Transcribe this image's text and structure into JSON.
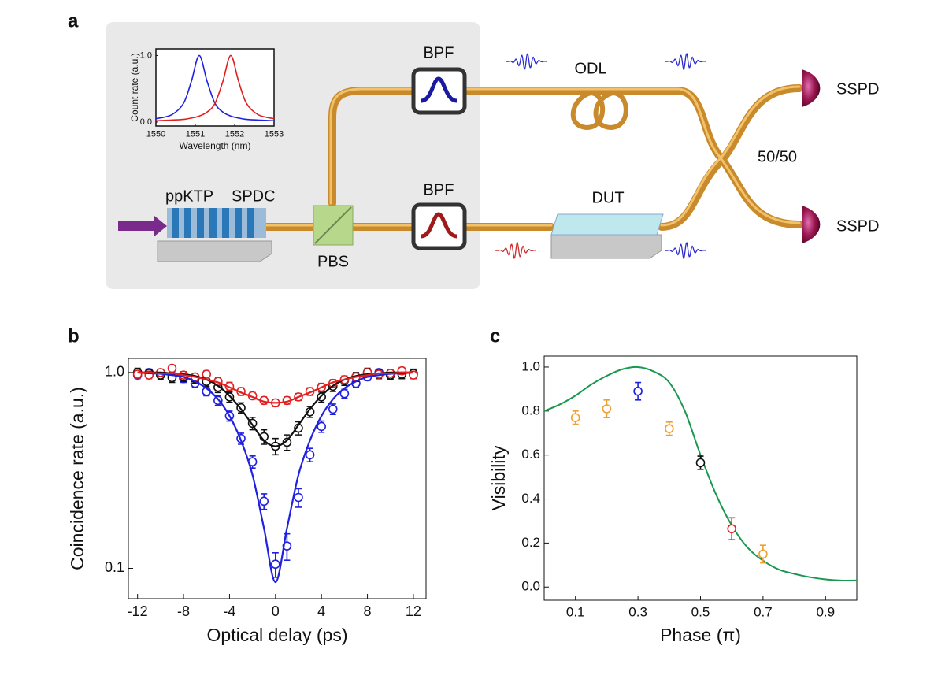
{
  "panel_labels": [
    "a",
    "b",
    "c"
  ],
  "diagram": {
    "ppktp": "ppKTP",
    "spdc": "SPDC",
    "pbs": "PBS",
    "bpf_top": "BPF",
    "bpf_bottom": "BPF",
    "odl": "ODL",
    "dut": "DUT",
    "sspd_top": "SSPD",
    "sspd_bottom": "SSPD",
    "splitter": "50/50"
  },
  "chart_data": [
    {
      "type": "line",
      "xlabel": "Wavelength (nm)",
      "ylabel": "Count rate (a.u.)",
      "xlim": [
        1550,
        1553
      ],
      "ylim": [
        -0.06,
        1.1
      ],
      "xticks": [
        1550,
        1551,
        1552,
        1553
      ],
      "yticks": [
        {
          "value": 0,
          "label": "0.0"
        },
        {
          "value": 1,
          "label": "1.0"
        }
      ],
      "x": [
        1550,
        1550.4,
        1550.7,
        1550.9,
        1551.1,
        1551.3,
        1551.5,
        1551.7,
        1551.9,
        1552.1,
        1552.3,
        1552.6,
        1553
      ],
      "series": [
        {
          "color": "#1f1fe6",
          "values": [
            0.05,
            0.11,
            0.28,
            0.61,
            1.0,
            0.61,
            0.28,
            0.15,
            0.09,
            0.06,
            0.04,
            0.03,
            0.02
          ]
        },
        {
          "color": "#e01f1f",
          "values": [
            0.02,
            0.03,
            0.04,
            0.06,
            0.09,
            0.15,
            0.28,
            0.61,
            1.0,
            0.61,
            0.28,
            0.11,
            0.05
          ]
        }
      ]
    },
    {
      "type": "scatter",
      "xlabel": "Optical delay (ps)",
      "ylabel": "Coincidence rate (a.u.)",
      "log_y": true,
      "xlim": [
        -12.8,
        13.1
      ],
      "ylim": [
        0.07,
        1.18
      ],
      "xticks": [
        -12,
        -8,
        -4,
        0,
        4,
        8,
        12
      ],
      "yticks": [
        0.1,
        {
          "value": 1,
          "label": "1.0"
        }
      ],
      "x": [
        -12,
        -11,
        -10,
        -9,
        -8,
        -7,
        -6,
        -5,
        -4,
        -3,
        -2,
        -1,
        0,
        1,
        2,
        3,
        4,
        5,
        6,
        7,
        8,
        9,
        10,
        11,
        12
      ],
      "series": [
        {
          "color": "#2020e0",
          "values": [
            0.97,
            1.0,
            0.98,
            0.96,
            0.93,
            0.88,
            0.8,
            0.72,
            0.6,
            0.46,
            0.35,
            0.22,
            0.105,
            0.13,
            0.23,
            0.38,
            0.53,
            0.65,
            0.78,
            0.88,
            0.95,
            1.0,
            0.97,
            0.99,
            0.98
          ],
          "errors": [
            0.04,
            0.04,
            0.04,
            0.04,
            0.04,
            0.04,
            0.04,
            0.04,
            0.035,
            0.03,
            0.025,
            0.02,
            0.015,
            0.02,
            0.025,
            0.03,
            0.035,
            0.04,
            0.04,
            0.04,
            0.04,
            0.04,
            0.04,
            0.04,
            0.04
          ],
          "fit": [
            1.0,
            0.99,
            0.985,
            0.97,
            0.95,
            0.9,
            0.83,
            0.73,
            0.6,
            0.45,
            0.3,
            0.16,
            0.085,
            0.16,
            0.3,
            0.45,
            0.6,
            0.73,
            0.83,
            0.9,
            0.95,
            0.97,
            0.985,
            0.99,
            1.0
          ]
        },
        {
          "color": "#111111",
          "values": [
            1.0,
            0.99,
            0.97,
            0.94,
            0.95,
            0.93,
            0.9,
            0.84,
            0.75,
            0.66,
            0.55,
            0.47,
            0.42,
            0.44,
            0.52,
            0.63,
            0.75,
            0.85,
            0.91,
            0.95,
            1.0,
            0.98,
            0.97,
            0.98,
            0.99
          ],
          "errors": [
            0.05,
            0.05,
            0.05,
            0.05,
            0.05,
            0.05,
            0.05,
            0.05,
            0.045,
            0.04,
            0.04,
            0.04,
            0.04,
            0.04,
            0.04,
            0.04,
            0.045,
            0.05,
            0.05,
            0.05,
            0.05,
            0.05,
            0.05,
            0.05,
            0.05
          ],
          "fit": [
            1.0,
            1.0,
            1.0,
            0.99,
            0.98,
            0.96,
            0.92,
            0.855,
            0.76,
            0.65,
            0.54,
            0.45,
            0.42,
            0.45,
            0.54,
            0.65,
            0.76,
            0.855,
            0.92,
            0.96,
            0.98,
            0.99,
            1.0,
            1.0,
            1.0
          ]
        },
        {
          "color": "#e02020",
          "values": [
            0.98,
            0.97,
            1.0,
            1.05,
            0.97,
            0.95,
            0.98,
            0.9,
            0.85,
            0.8,
            0.76,
            0.72,
            0.7,
            0.72,
            0.75,
            0.8,
            0.84,
            0.88,
            0.92,
            0.95,
            1.0,
            0.98,
            0.99,
            1.02,
            0.97
          ],
          "errors": [
            0.04,
            0.04,
            0.04,
            0.04,
            0.04,
            0.04,
            0.04,
            0.04,
            0.04,
            0.035,
            0.03,
            0.03,
            0.03,
            0.03,
            0.03,
            0.035,
            0.04,
            0.04,
            0.04,
            0.04,
            0.04,
            0.04,
            0.04,
            0.04,
            0.04
          ],
          "fit": [
            1.0,
            1.0,
            0.99,
            0.99,
            0.97,
            0.95,
            0.92,
            0.89,
            0.84,
            0.79,
            0.75,
            0.71,
            0.7,
            0.71,
            0.75,
            0.79,
            0.84,
            0.89,
            0.92,
            0.95,
            0.97,
            0.99,
            0.99,
            1.0,
            1.0
          ]
        }
      ]
    },
    {
      "type": "scatter",
      "xlabel": "Phase (π)",
      "ylabel": "Visibility",
      "xlim": [
        0,
        1
      ],
      "ylim": [
        -0.06,
        1.05
      ],
      "xticks": [
        0.1,
        0.3,
        0.5,
        0.7,
        0.9
      ],
      "yticks": [
        {
          "value": 0,
          "label": "0.0"
        },
        0.2,
        0.4,
        0.6,
        0.8,
        {
          "value": 1,
          "label": "1.0"
        }
      ],
      "x": [
        0.1,
        0.2,
        0.3,
        0.4,
        0.5,
        0.6,
        0.7
      ],
      "values": [
        0.77,
        0.81,
        0.89,
        0.72,
        0.565,
        0.265,
        0.15
      ],
      "errors": [
        0.03,
        0.04,
        0.04,
        0.03,
        0.03,
        0.05,
        0.04
      ],
      "point_colors": [
        "#f0a030",
        "#f0a030",
        "#2020e0",
        "#f0a030",
        "#111111",
        "#e02020",
        "#f0a030"
      ],
      "fit_color": "#1a9850",
      "fit_x": [
        0,
        0.05,
        0.1,
        0.15,
        0.2,
        0.25,
        0.3,
        0.35,
        0.4,
        0.45,
        0.5,
        0.55,
        0.6,
        0.65,
        0.7,
        0.75,
        0.8,
        0.85,
        0.9,
        0.95,
        1.0
      ],
      "fit": [
        0.8,
        0.83,
        0.87,
        0.92,
        0.96,
        0.99,
        1.0,
        0.98,
        0.93,
        0.8,
        0.6,
        0.42,
        0.28,
        0.18,
        0.12,
        0.08,
        0.06,
        0.045,
        0.035,
        0.03,
        0.03
      ]
    }
  ]
}
